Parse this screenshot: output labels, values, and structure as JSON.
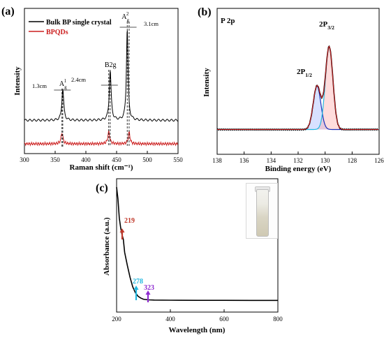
{
  "chart_data": [
    {
      "type": "line",
      "panel_label": "(a)",
      "xlabel": "Raman shift (cm⁻¹)",
      "ylabel": "Intensity",
      "xlim": [
        300,
        550
      ],
      "xticks": [
        300,
        350,
        400,
        450,
        500,
        550
      ],
      "legend": [
        "Bulk BP single crystal",
        "BPQDs"
      ],
      "legend_position": "top-left",
      "colors": {
        "bulk": "#000000",
        "qd": "#cc1f1f"
      },
      "peaks_bulk": [
        362.4,
        439.6,
        467.3
      ],
      "peaks_qd": [
        361.1,
        437.2,
        470.4
      ],
      "peak_heights_bulk": [
        0.32,
        0.5,
        0.92
      ],
      "peak_heights_qd": [
        0.13,
        0.14,
        0.14
      ],
      "peak_labels": [
        {
          "main": "A",
          "sub": "g",
          "sup": "1"
        },
        {
          "main": "B",
          "sub": "",
          "sup": "",
          "text": "B2g"
        },
        {
          "main": "A",
          "sub": "g",
          "sup": "2"
        }
      ],
      "shift_labels": [
        "1.3cm",
        "2.4cm",
        "3.1cm"
      ],
      "grid": false
    },
    {
      "type": "line",
      "panel_label": "(b)",
      "title": "P 2p",
      "xlabel": "Binding energy (eV)",
      "ylabel": "Intensity",
      "xlim": [
        138,
        126
      ],
      "xticks": [
        138,
        136,
        134,
        132,
        130,
        128,
        126
      ],
      "peaks": [
        {
          "label": "2P",
          "sub": "1/2",
          "center": 130.6,
          "height": 0.5,
          "color": "#1a2fb8"
        },
        {
          "label": "2P",
          "sub": "3/2",
          "center": 129.7,
          "height": 0.95,
          "color": "#22b8e0"
        }
      ],
      "baseline": 0.02,
      "colors": {
        "data": "#000000",
        "envelope": "#cc1f1f"
      },
      "grid": false
    },
    {
      "type": "line",
      "panel_label": "(c)",
      "xlabel": "Wavelength (nm)",
      "ylabel": "Absorbance (a.u.)",
      "xlim": [
        200,
        800
      ],
      "xticks": [
        200,
        400,
        600,
        800
      ],
      "x": [
        200,
        205,
        210,
        215,
        220,
        225,
        230,
        240,
        250,
        260,
        270,
        280,
        290,
        300,
        320,
        340,
        400,
        500,
        600,
        700,
        800
      ],
      "y": [
        1.0,
        0.9,
        0.74,
        0.66,
        0.6,
        0.56,
        0.45,
        0.34,
        0.24,
        0.16,
        0.11,
        0.08,
        0.065,
        0.055,
        0.05,
        0.048,
        0.047,
        0.046,
        0.046,
        0.045,
        0.045
      ],
      "annotations": [
        {
          "text": "219",
          "x": 219,
          "color": "#c0392b"
        },
        {
          "text": "278",
          "x": 278,
          "color": "#22b8e0"
        },
        {
          "text": "323",
          "x": 323,
          "color": "#8e2bd0"
        }
      ],
      "grid": false
    }
  ]
}
